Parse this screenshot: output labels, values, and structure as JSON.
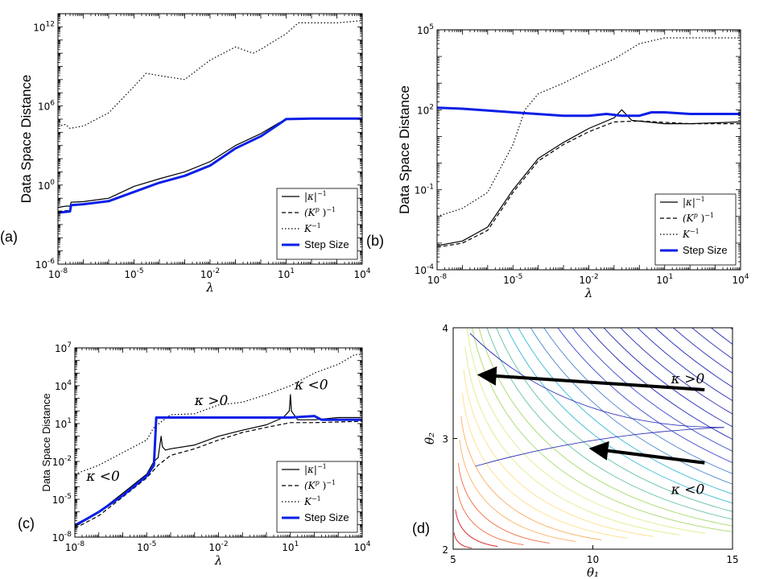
{
  "chart_data": [
    {
      "id": "a",
      "panel_label": "(a)",
      "type": "line",
      "xlabel": "λ",
      "ylabel": "Data Space Distance",
      "xscale": "log",
      "yscale": "log",
      "xlim": [
        1e-08,
        10000.0
      ],
      "ylim": [
        1e-06,
        10000000000000.0
      ],
      "xticks": [
        {
          "v": 1e-08,
          "b": "10",
          "e": "-8"
        },
        {
          "v": 1e-05,
          "b": "10",
          "e": "-5"
        },
        {
          "v": 0.01,
          "b": "10",
          "e": "-2"
        },
        {
          "v": 10,
          "b": "10",
          "e": "1"
        },
        {
          "v": 10000.0,
          "b": "10",
          "e": "4"
        }
      ],
      "yticks": [
        {
          "v": 1e-06,
          "b": "10",
          "e": "-6"
        },
        {
          "v": 1,
          "b": "10",
          "e": "0"
        },
        {
          "v": 1000000.0,
          "b": "10",
          "e": "6"
        },
        {
          "v": 1000000000000.0,
          "b": "10",
          "e": "12"
        }
      ],
      "legend_position": "lower-right",
      "series": [
        {
          "name": "|κ|⁻¹",
          "style": "solid",
          "color": "#000000",
          "width": 1.2,
          "points": [
            [
              1e-08,
              0.02
            ],
            [
              2e-08,
              0.025
            ],
            [
              3e-08,
              0.025
            ],
            [
              3.3e-08,
              0.05
            ],
            [
              1e-07,
              0.055
            ],
            [
              1e-06,
              0.1
            ],
            [
              1e-05,
              0.8
            ],
            [
              0.0001,
              3
            ],
            [
              0.001,
              10
            ],
            [
              0.01,
              60
            ],
            [
              0.1,
              1000
            ],
            [
              1,
              8000
            ],
            [
              5,
              50000
            ],
            [
              10,
              100000
            ],
            [
              100,
              110000
            ],
            [
              10000.0,
              110000
            ]
          ]
        },
        {
          "name": "(Kᵖ)⁻¹",
          "style": "dash",
          "color": "#000000",
          "width": 1.2,
          "points": [
            [
              1e-08,
              0.01
            ],
            [
              3e-08,
              0.012
            ],
            [
              3.3e-08,
              0.03
            ],
            [
              1e-07,
              0.035
            ],
            [
              1e-06,
              0.06
            ],
            [
              1e-05,
              0.3
            ],
            [
              0.0001,
              1.5
            ],
            [
              0.001,
              5
            ],
            [
              0.01,
              30
            ],
            [
              0.1,
              600
            ],
            [
              1,
              5000
            ],
            [
              5,
              40000
            ],
            [
              10,
              100000
            ],
            [
              100,
              110000
            ],
            [
              10000.0,
              110000
            ]
          ]
        },
        {
          "name": "K⁻¹",
          "style": "dot",
          "color": "#000000",
          "width": 1.2,
          "points": [
            [
              1e-08,
              30000
            ],
            [
              2e-08,
              40000
            ],
            [
              3e-08,
              20000
            ],
            [
              1e-07,
              30000
            ],
            [
              1e-06,
              300000
            ],
            [
              1e-05,
              30000000.0
            ],
            [
              3e-05,
              300000000.0
            ],
            [
              0.0001,
              200000000.0
            ],
            [
              0.001,
              100000000.0
            ],
            [
              0.01,
              3000000000.0
            ],
            [
              0.1,
              30000000000.0
            ],
            [
              0.5,
              10000000000.0
            ],
            [
              1,
              20000000000.0
            ],
            [
              10,
              300000000000.0
            ],
            [
              30,
              2000000000000.0
            ],
            [
              100,
              2000000000000.0
            ],
            [
              1000.0,
              2000000000000.0
            ],
            [
              10000.0,
              3000000000000.0
            ]
          ]
        },
        {
          "name": "Step Size",
          "style": "solid",
          "color": "#0a1fe6",
          "width": 3,
          "points": [
            [
              1e-08,
              0.008
            ],
            [
              3e-08,
              0.01
            ],
            [
              3.3e-08,
              0.03
            ],
            [
              1e-07,
              0.035
            ],
            [
              1e-06,
              0.06
            ],
            [
              1e-05,
              0.3
            ],
            [
              0.0001,
              1.5
            ],
            [
              0.001,
              5
            ],
            [
              0.01,
              30
            ],
            [
              0.1,
              600
            ],
            [
              1,
              5000
            ],
            [
              5,
              40000
            ],
            [
              10,
              100000
            ],
            [
              100,
              110000
            ],
            [
              10000.0,
              110000
            ]
          ]
        }
      ]
    },
    {
      "id": "b",
      "panel_label": "(b)",
      "type": "line",
      "xlabel": "λ",
      "ylabel": "Data Space Distance",
      "xscale": "log",
      "yscale": "log",
      "xlim": [
        1e-08,
        10000.0
      ],
      "ylim": [
        0.0001,
        100000.0
      ],
      "xticks": [
        {
          "v": 1e-08,
          "b": "10",
          "e": "-8"
        },
        {
          "v": 1e-05,
          "b": "10",
          "e": "-5"
        },
        {
          "v": 0.01,
          "b": "10",
          "e": "-2"
        },
        {
          "v": 10,
          "b": "10",
          "e": "1"
        },
        {
          "v": 10000.0,
          "b": "10",
          "e": "4"
        }
      ],
      "yticks": [
        {
          "v": 0.0001,
          "b": "10",
          "e": "-4"
        },
        {
          "v": 0.1,
          "b": "10",
          "e": "-1"
        },
        {
          "v": 100,
          "b": "10",
          "e": "2"
        },
        {
          "v": 100000.0,
          "b": "10",
          "e": "5"
        }
      ],
      "legend_position": "lower-right",
      "series": [
        {
          "name": "|κ|⁻¹",
          "style": "solid",
          "color": "#000000",
          "width": 1.2,
          "points": [
            [
              1e-08,
              0.0008
            ],
            [
              1e-07,
              0.0012
            ],
            [
              1e-06,
              0.004
            ],
            [
              1e-05,
              0.1
            ],
            [
              0.0001,
              1.5
            ],
            [
              0.001,
              6
            ],
            [
              0.01,
              20
            ],
            [
              0.1,
              50
            ],
            [
              0.2,
              100
            ],
            [
              0.5,
              40
            ],
            [
              10,
              30
            ],
            [
              100,
              30
            ],
            [
              10000.0,
              35
            ]
          ]
        },
        {
          "name": "(Kᵖ)⁻¹",
          "style": "dash",
          "color": "#000000",
          "width": 1.2,
          "points": [
            [
              1e-08,
              0.0007
            ],
            [
              1e-07,
              0.001
            ],
            [
              1e-06,
              0.003
            ],
            [
              1e-05,
              0.08
            ],
            [
              0.0001,
              1.2
            ],
            [
              0.001,
              5
            ],
            [
              0.01,
              15
            ],
            [
              0.1,
              35
            ],
            [
              1,
              38
            ],
            [
              100,
              30
            ],
            [
              10000.0,
              30
            ]
          ]
        },
        {
          "name": "K⁻¹",
          "style": "dot",
          "color": "#000000",
          "width": 1.2,
          "points": [
            [
              1e-08,
              0.01
            ],
            [
              1e-07,
              0.02
            ],
            [
              1e-06,
              0.08
            ],
            [
              1e-05,
              5
            ],
            [
              3e-05,
              100
            ],
            [
              0.0001,
              400
            ],
            [
              0.001,
              1000
            ],
            [
              0.01,
              3000
            ],
            [
              0.1,
              8000
            ],
            [
              1,
              30000
            ],
            [
              10,
              50000
            ],
            [
              100,
              50000
            ],
            [
              10000.0,
              50000
            ]
          ]
        },
        {
          "name": "Step Size",
          "style": "solid",
          "color": "#0a1fe6",
          "width": 3,
          "points": [
            [
              1e-08,
              120
            ],
            [
              1e-07,
              110
            ],
            [
              1e-05,
              80
            ],
            [
              0.001,
              60
            ],
            [
              0.01,
              60
            ],
            [
              0.05,
              70
            ],
            [
              0.2,
              60
            ],
            [
              1,
              60
            ],
            [
              3,
              80
            ],
            [
              10,
              80
            ],
            [
              100,
              70
            ],
            [
              10000.0,
              70
            ]
          ]
        }
      ]
    },
    {
      "id": "c",
      "panel_label": "(c)",
      "type": "line",
      "xlabel": "λ",
      "ylabel": "Data Space Distance",
      "xscale": "log",
      "yscale": "log",
      "xlim": [
        1e-08,
        10000.0
      ],
      "ylim": [
        1e-08,
        10000000.0
      ],
      "xticks": [
        {
          "v": 1e-08,
          "b": "10",
          "e": "-8"
        },
        {
          "v": 1e-05,
          "b": "10",
          "e": "-5"
        },
        {
          "v": 0.01,
          "b": "10",
          "e": "-2"
        },
        {
          "v": 10,
          "b": "10",
          "e": "1"
        },
        {
          "v": 10000.0,
          "b": "10",
          "e": "4"
        }
      ],
      "yticks": [
        {
          "v": 1e-08,
          "b": "10",
          "e": "-8"
        },
        {
          "v": 1e-05,
          "b": "10",
          "e": "-5"
        },
        {
          "v": 0.01,
          "b": "10",
          "e": "-2"
        },
        {
          "v": 10,
          "b": "10",
          "e": "1"
        },
        {
          "v": 10000.0,
          "b": "10",
          "e": "4"
        },
        {
          "v": 10000000.0,
          "b": "10",
          "e": "7"
        }
      ],
      "legend_position": "lower-right",
      "annotations": [
        {
          "text": "κ <0",
          "x": 3e-08,
          "y": 0.0003
        },
        {
          "text": "κ >0",
          "x": 0.001,
          "y": 300
        },
        {
          "text": "κ <0",
          "x": 15,
          "y": 5000
        }
      ],
      "series": [
        {
          "name": "|κ|⁻¹",
          "style": "solid",
          "color": "#000000",
          "width": 1.2,
          "points": [
            [
              1e-08,
              1e-07
            ],
            [
              1e-07,
              1e-06
            ],
            [
              1e-06,
              3e-05
            ],
            [
              1e-05,
              0.001
            ],
            [
              2e-05,
              0.01
            ],
            [
              3e-05,
              0.02
            ],
            [
              4e-05,
              1
            ],
            [
              4.5e-05,
              0.15
            ],
            [
              6e-05,
              0.08
            ],
            [
              0.0001,
              0.1
            ],
            [
              0.001,
              0.2
            ],
            [
              0.01,
              1
            ],
            [
              0.1,
              3
            ],
            [
              1,
              8
            ],
            [
              5,
              30
            ],
            [
              9,
              100
            ],
            [
              10,
              2000
            ],
            [
              11,
              100
            ],
            [
              20,
              20
            ],
            [
              100,
              20
            ],
            [
              1000.0,
              30
            ],
            [
              10000.0,
              30
            ]
          ]
        },
        {
          "name": "(Kᵖ)⁻¹",
          "style": "dash",
          "color": "#000000",
          "width": 1.2,
          "points": [
            [
              1e-08,
              5e-08
            ],
            [
              1e-07,
              5e-07
            ],
            [
              1e-06,
              1.5e-05
            ],
            [
              1e-05,
              0.0005
            ],
            [
              3e-05,
              0.005
            ],
            [
              0.0001,
              0.03
            ],
            [
              0.001,
              0.1
            ],
            [
              0.01,
              0.5
            ],
            [
              0.1,
              2
            ],
            [
              1,
              5
            ],
            [
              10,
              12
            ],
            [
              100,
              12
            ],
            [
              10000.0,
              15
            ]
          ]
        },
        {
          "name": "K⁻¹",
          "style": "dot",
          "color": "#000000",
          "width": 1.2,
          "points": [
            [
              1e-08,
              0.001
            ],
            [
              1e-07,
              0.005
            ],
            [
              1e-06,
              0.05
            ],
            [
              1e-05,
              0.5
            ],
            [
              2e-05,
              5
            ],
            [
              0.0001,
              50
            ],
            [
              0.001,
              60
            ],
            [
              0.01,
              300
            ],
            [
              0.1,
              500
            ],
            [
              1,
              2000
            ],
            [
              10,
              10000
            ],
            [
              100,
              100000.0
            ],
            [
              1000.0,
              500000.0
            ],
            [
              5000.0,
              3000000.0
            ],
            [
              10000.0,
              3000000.0
            ]
          ]
        },
        {
          "name": "Step Size",
          "style": "solid",
          "color": "#0a1fe6",
          "width": 3,
          "points": [
            [
              1e-08,
              8e-08
            ],
            [
              1e-07,
              1e-06
            ],
            [
              1e-06,
              2e-05
            ],
            [
              1e-05,
              0.0007
            ],
            [
              2e-05,
              0.005
            ],
            [
              2.3e-05,
              1
            ],
            [
              2.5e-05,
              30
            ],
            [
              0.0001,
              30
            ],
            [
              0.001,
              30
            ],
            [
              0.01,
              30
            ],
            [
              0.1,
              30
            ],
            [
              1,
              30
            ],
            [
              10,
              30
            ],
            [
              100,
              40
            ],
            [
              200,
              20
            ],
            [
              1000.0,
              20
            ],
            [
              10000.0,
              20
            ]
          ]
        }
      ]
    },
    {
      "id": "d",
      "panel_label": "(d)",
      "type": "contour",
      "xlabel": "θ₁",
      "ylabel": "θ₂",
      "xlim": [
        5,
        15
      ],
      "ylim": [
        2,
        4
      ],
      "xticks": [
        5,
        10,
        15
      ],
      "yticks": [
        2,
        3,
        4
      ],
      "annotations": [
        {
          "text": "κ >0",
          "x": 12.8,
          "y": 3.5
        },
        {
          "text": "κ <0",
          "x": 12.8,
          "y": 2.5
        }
      ],
      "arrows": [
        {
          "from": [
            14,
            3.44
          ],
          "to": [
            6.2,
            3.57
          ]
        },
        {
          "from": [
            14,
            2.78
          ],
          "to": [
            10.2,
            2.9
          ]
        }
      ],
      "contour_palette": [
        "#d7191c",
        "#f46d43",
        "#fdae61",
        "#fee08b",
        "#d9ef8b",
        "#a6d96a",
        "#66c2a5",
        "#3abad6",
        "#4f86d0",
        "#3d4bd1",
        "#2b2fb8"
      ]
    }
  ],
  "legend": {
    "entries": [
      {
        "label_base": "|κ|",
        "label_sup": "−1",
        "style": "solid"
      },
      {
        "label_base": "(K",
        "label_sup2": "p",
        "label_mid": ")",
        "label_sup": "−1",
        "style": "dash"
      },
      {
        "label_base": "K",
        "label_sup": "−1",
        "style": "dot"
      },
      {
        "label_base": "Step Size",
        "label_sup": "",
        "style": "step"
      }
    ]
  }
}
